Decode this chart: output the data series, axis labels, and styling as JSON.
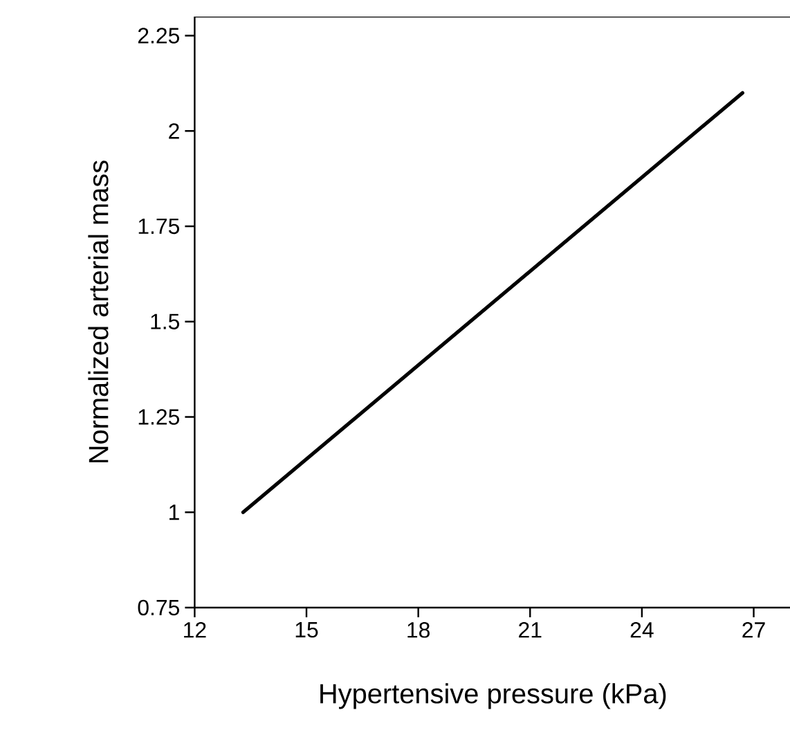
{
  "chart_data": {
    "type": "line",
    "xlabel": "Hypertensive pressure (kPa)",
    "ylabel": "Normalized arterial mass",
    "x": [
      13.3,
      26.7
    ],
    "series": [
      {
        "color": "#000000",
        "values": [
          1.0,
          2.1
        ]
      }
    ],
    "xlim": [
      12,
      28
    ],
    "ylim": [
      0.75,
      2.3
    ],
    "xticks": [
      12,
      15,
      18,
      21,
      24,
      27
    ],
    "yticks": [
      0.75,
      1,
      1.25,
      1.5,
      1.75,
      2,
      2.25
    ],
    "marker": "none",
    "line_style": "solid"
  }
}
